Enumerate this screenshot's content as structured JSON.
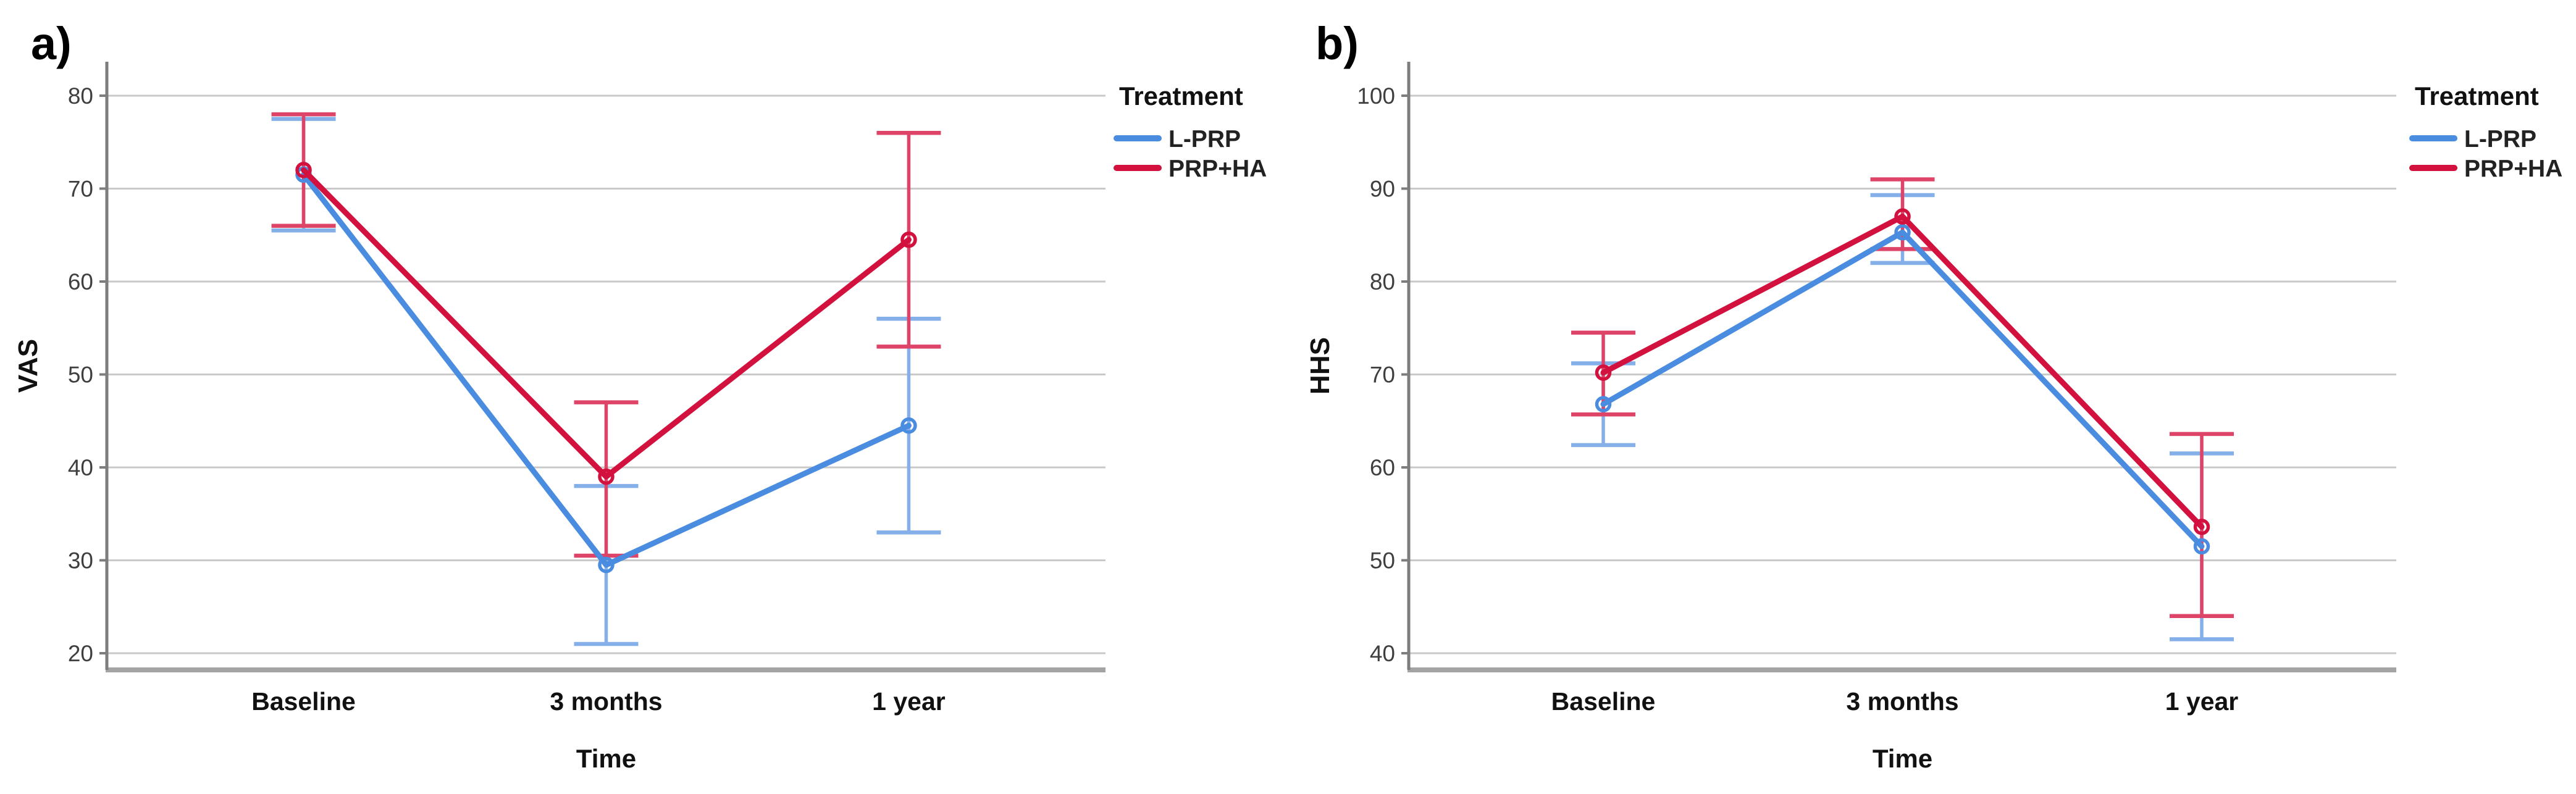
{
  "figure": {
    "background": "#ffffff",
    "panel_labels": [
      "a)",
      "b)"
    ]
  },
  "colors": {
    "series_blue": "#4A8CDF",
    "series_blue_error": "#85AFE8",
    "series_red": "#D2113E",
    "series_red_error": "#DE4467",
    "gridline": "#C9C9C9",
    "axis_y": "#7D7D7D",
    "axis_x": "#A3A3A3",
    "tick_text": "#3F3F3F",
    "label_text": "#111111"
  },
  "chart_data": [
    {
      "id": "a",
      "type": "line",
      "panel_label": "a)",
      "xlabel": "Time",
      "ylabel": "VAS",
      "categories": [
        "Baseline",
        "3 months",
        "1 year"
      ],
      "yticks": [
        20,
        30,
        40,
        50,
        60,
        70,
        80
      ],
      "ylim": [
        20,
        80
      ],
      "grid": true,
      "legend_title": "Treatment",
      "legend_position": "right",
      "series": [
        {
          "name": "L-PRP",
          "color_key": "blue",
          "values": [
            71.5,
            29.5,
            44.5
          ],
          "err_low": [
            65.5,
            21.0,
            33.0
          ],
          "err_high": [
            77.5,
            38.0,
            56.0
          ]
        },
        {
          "name": "PRP+HA",
          "color_key": "red",
          "values": [
            72.0,
            39.0,
            64.5
          ],
          "err_low": [
            66.0,
            30.5,
            53.0
          ],
          "err_high": [
            78.0,
            47.0,
            76.0
          ]
        }
      ]
    },
    {
      "id": "b",
      "type": "line",
      "panel_label": "b)",
      "xlabel": "Time",
      "ylabel": "HHS",
      "categories": [
        "Baseline",
        "3 months",
        "1 year"
      ],
      "yticks": [
        40,
        50,
        60,
        70,
        80,
        90,
        100
      ],
      "ylim": [
        40,
        100
      ],
      "grid": true,
      "legend_title": "Treatment",
      "legend_position": "right",
      "series": [
        {
          "name": "L-PRP",
          "color_key": "blue",
          "values": [
            66.8,
            85.3,
            51.5
          ],
          "err_low": [
            62.4,
            82.0,
            41.5
          ],
          "err_high": [
            71.2,
            89.3,
            61.5
          ]
        },
        {
          "name": "PRP+HA",
          "color_key": "red",
          "values": [
            70.2,
            87.0,
            53.6
          ],
          "err_low": [
            65.7,
            83.5,
            44.0
          ],
          "err_high": [
            74.5,
            91.0,
            63.6
          ]
        }
      ]
    }
  ]
}
